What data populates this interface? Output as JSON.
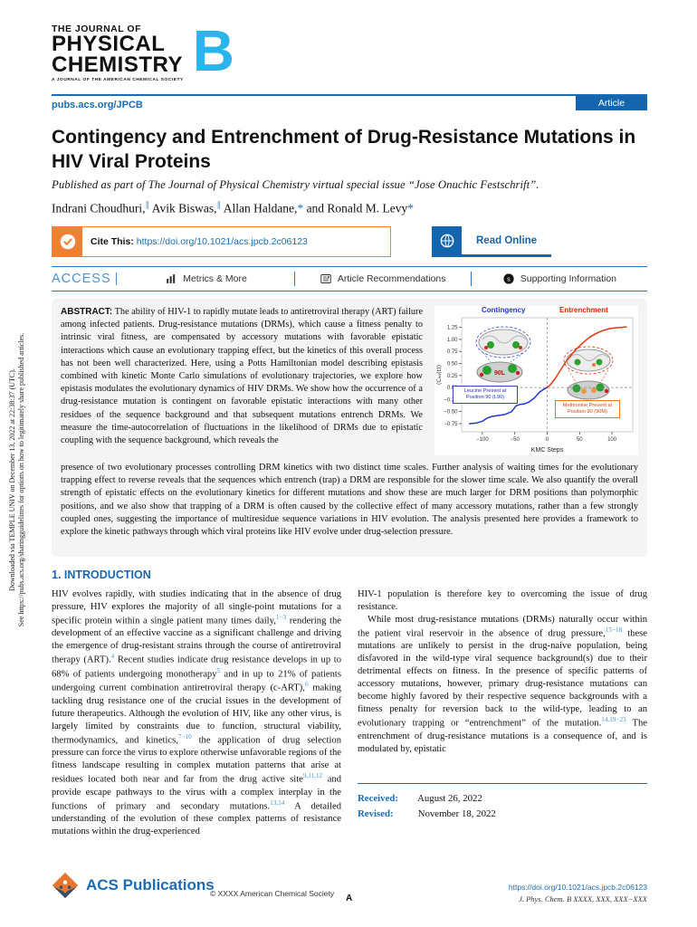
{
  "sidebar": {
    "line1": "Downloaded via TEMPLE UNIV on December 13, 2022 at 22:38:37 (UTC).",
    "line2": "See https://pubs.acs.org/sharingguidelines for options on how to legitimately share published articles."
  },
  "masthead": {
    "journal_line1": "THE JOURNAL OF",
    "journal_line2": "PHYSICAL",
    "journal_line3": "CHEMISTRY",
    "journal_letter": "B",
    "tagline": "A JOURNAL OF THE AMERICAN CHEMICAL SOCIETY",
    "site_link": "pubs.acs.org/JPCB",
    "article_badge": "Article"
  },
  "article": {
    "title": "Contingency and Entrenchment of Drug-Resistance Mutations in HIV Viral Proteins",
    "special_issue": "Published as part of The Journal of Physical Chemistry virtual special issue “Jose Onuchic Festschrift”.",
    "authors_rich": "Indrani Choudhuri,^{∥} Avik Biswas,^{∥} Allan Haldane,~{*} and Ronald M. Levy~{*}",
    "cite_label": "Cite This:",
    "cite_link": "https://doi.org/10.1021/acs.jpcb.2c06123",
    "read_online_label": "Read Online"
  },
  "access_bar": {
    "access": "ACCESS",
    "metrics": "Metrics & More",
    "recommendations": "Article Recommendations",
    "supporting": "Supporting Information"
  },
  "abstract": {
    "label": "ABSTRACT:",
    "text_left": "The ability of HIV-1 to rapidly mutate leads to antiretroviral therapy (ART) failure among infected patients. Drug-resistance mutations (DRMs), which cause a fitness penalty to intrinsic viral fitness, are compensated by accessory mutations with favorable epistatic interactions which cause an evolutionary trapping effect, but the kinetics of this overall process has not been well characterized. Here, using a Potts Hamiltonian model describing epistasis combined with kinetic Monte Carlo simulations of evolutionary trajectories, we explore how epistasis modulates the evolutionary dynamics of HIV DRMs. We show how the occurrence of a drug-resistance mutation is contingent on favorable epistatic interactions with many other residues of the sequence background and that subsequent mutations entrench DRMs. We measure the time-autocorrelation of fluctuations in the likelihood of DRMs due to epistatic coupling with the sequence background, which reveals the",
    "text_bottom": "presence of two evolutionary processes controlling DRM kinetics with two distinct time scales. Further analysis of waiting times for the evolutionary trapping effect to reverse reveals that the sequences which entrench (trap) a DRM are responsible for the slower time scale. We also quantify the overall strength of epistatic effects on the evolutionary kinetics for different mutations and show these are much larger for DRM positions than polymorphic positions, and we also show that trapping of a DRM is often caused by the collective effect of many accessory mutations, rather than a few strongly coupled ones, suggesting the importance of multiresidue sequence variations in HIV evolution. The analysis presented here provides a framework to explore the kinetic pathways through which viral proteins like HIV evolve under drug-selection pressure."
  },
  "chart_data": {
    "type": "line",
    "title": "",
    "xlabel": "KMC Steps",
    "ylabel": "⟨C₉₀(t)⟩",
    "xlim": [
      -132,
      132
    ],
    "ylim": [
      -0.92,
      1.45
    ],
    "x_ticks": [
      -100,
      -50,
      0,
      50,
      100
    ],
    "y_ticks": [
      -0.75,
      -0.5,
      -0.25,
      0,
      0.25,
      0.5,
      0.75,
      1,
      1.25
    ],
    "grid": false,
    "legend_position": "none",
    "reference_lines": {
      "x": 0,
      "y": 0
    },
    "phase_labels": [
      {
        "text": "Contingency",
        "color": "#2233cc"
      },
      {
        "text": "Entrenchment",
        "color": "#dd2200"
      }
    ],
    "annotations": [
      {
        "text": "Leucine Present at Position 90 (L90)",
        "color": "#2233bb"
      },
      {
        "text": "Methionine Present at Position 90 (90M)",
        "color": "#d3441c"
      }
    ],
    "inset_label": "90L",
    "series": [
      {
        "name": "Contingency",
        "color": "#2238cc",
        "x": [
          -120,
          -110,
          -100,
          -92,
          -85,
          -75,
          -65,
          -55,
          -48,
          -42,
          -35,
          -28,
          -20,
          -12,
          -6,
          0
        ],
        "y": [
          -0.75,
          -0.74,
          -0.7,
          -0.63,
          -0.6,
          -0.58,
          -0.56,
          -0.5,
          -0.38,
          -0.35,
          -0.34,
          -0.3,
          -0.22,
          -0.1,
          -0.04,
          0.0
        ]
      },
      {
        "name": "Entrenchment",
        "color": "#e0390f",
        "x": [
          0,
          5,
          12,
          20,
          28,
          36,
          45,
          55,
          65,
          75,
          85,
          95,
          105,
          115,
          122
        ],
        "y": [
          0.0,
          0.06,
          0.18,
          0.35,
          0.52,
          0.66,
          0.8,
          0.93,
          1.04,
          1.12,
          1.18,
          1.22,
          1.24,
          1.25,
          1.26
        ]
      }
    ]
  },
  "introduction": {
    "heading": "1. INTRODUCTION",
    "col1_p1": "HIV evolves rapidly, with studies indicating that in the absence of drug pressure, HIV explores the majority of all single-point mutations for a specific protein within a single patient many times daily,^{1−3} rendering the development of an effective vaccine as a significant challenge and driving the emergence of drug-resistant strains through the course of antiretroviral therapy (ART).^{4} Recent studies indicate drug resistance develops in up to 68% of patients undergoing monotherapy^{5} and in up to 21% of patients undergoing current combination antiretroviral therapy (c-ART),^{6} making tackling drug resistance one of the crucial issues in the development of future therapeutics. Although the evolution of HIV, like any other virus, is largely limited by constraints due to function, structural viability, thermodynamics, and kinetics,^{7−10} the application of drug selection pressure can force the virus to explore otherwise unfavorable regions of the fitness landscape resulting in complex mutation patterns that arise at residues located both near and far from the drug active site^{9,11,12} and provide escape pathways to the virus with a complex interplay in the functions of primary and secondary mutations.^{13,14} A detailed understanding of the evolution of these complex patterns of resistance mutations within the drug-experienced",
    "col2_p1": "HIV-1 population is therefore key to overcoming the issue of drug resistance.",
    "col2_p2": "While most drug-resistance mutations (DRMs) naturally occur within the patient viral reservoir in the absence of drug pressure,^{15−18} these mutations are unlikely to persist in the drug-naive population, being disfavored in the wild-type viral sequence background(s) due to their detrimental effects on fitness. In the presence of specific patterns of accessory mutations, however, primary drug-resistance mutations can become highly favored by their respective sequence backgrounds with a fitness penalty for reversion back to the wild-type, leading to an evolutionary trapping or “entrenchment” of the mutation.^{14,19−23} The entrenchment of drug-resistance mutations is a consequence of, and is modulated by, epistatic",
    "received_label": "Received:",
    "received_date": "August 26, 2022",
    "revised_label": "Revised:",
    "revised_date": "November 18, 2022"
  },
  "footer": {
    "brand": "ACS Publications",
    "copyright": "© XXXX American Chemical Society",
    "page_letter": "A",
    "doi": "https://doi.org/10.1021/acs.jpcb.2c06123",
    "citation": "J. Phys. Chem. B XXXX, XXX, XXX−XXX"
  }
}
